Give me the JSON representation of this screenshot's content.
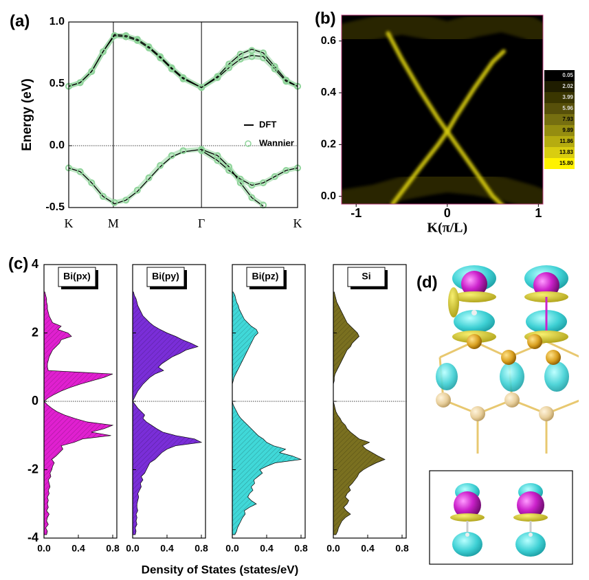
{
  "chart_data": [
    {
      "type": "line",
      "label": "(a)",
      "y_label": "Energy (eV)",
      "x": [
        0,
        0.05,
        0.1,
        0.15,
        0.2,
        0.25,
        0.3,
        0.35,
        0.4,
        0.45,
        0.5,
        0.58,
        0.65,
        0.7,
        0.75,
        0.8,
        0.85,
        0.9,
        0.95,
        1.0
      ],
      "xlim": [
        0,
        1
      ],
      "xticks": [
        {
          "value": 0,
          "label": "K"
        },
        {
          "value": 0.195,
          "label": "M"
        },
        {
          "value": 0.58,
          "label": "Γ"
        },
        {
          "value": 1,
          "label": "K"
        }
      ],
      "ylim": [
        -0.5,
        1.0
      ],
      "yticks": [
        -0.5,
        {
          "value": 0,
          "label": "0.0"
        },
        0.5,
        {
          "value": 1.0,
          "label": "1.0"
        }
      ],
      "hline": 0,
      "legend": "center right",
      "series": [
        {
          "name": "Wannier",
          "color": "#8fd49a",
          "marker": "circle",
          "values": [
            0.48,
            0.51,
            0.6,
            0.76,
            0.89,
            0.89,
            0.86,
            0.8,
            0.72,
            0.63,
            0.55,
            0.47,
            0.56,
            0.66,
            0.74,
            0.77,
            0.75,
            0.64,
            0.53,
            0.48
          ]
        },
        {
          "color": "#8fd49a",
          "marker": "circle",
          "values": [
            0.48,
            0.51,
            0.6,
            0.76,
            0.89,
            0.88,
            0.85,
            0.79,
            0.71,
            0.62,
            0.54,
            0.47,
            0.55,
            0.63,
            0.7,
            0.72,
            0.71,
            0.62,
            0.52,
            0.48
          ]
        },
        {
          "color": "#8fd49a",
          "marker": "circle",
          "values": [
            -0.18,
            -0.21,
            -0.3,
            -0.41,
            -0.46,
            -0.44,
            -0.36,
            -0.26,
            -0.16,
            -0.08,
            -0.04,
            -0.03,
            -0.08,
            -0.17,
            -0.3,
            -0.42,
            -0.48,
            null,
            null,
            null
          ]
        },
        {
          "color": "#8fd49a",
          "marker": "circle",
          "values": [
            null,
            null,
            null,
            null,
            null,
            null,
            null,
            null,
            null,
            null,
            null,
            -0.04,
            -0.12,
            -0.2,
            -0.27,
            -0.32,
            -0.3,
            -0.25,
            -0.2,
            -0.18
          ]
        },
        {
          "name": "DFT",
          "color": "#000000",
          "marker": "line",
          "values": [
            0.48,
            0.51,
            0.6,
            0.76,
            0.9,
            0.89,
            0.86,
            0.8,
            0.72,
            0.63,
            0.55,
            0.47,
            0.56,
            0.66,
            0.74,
            0.78,
            0.75,
            0.64,
            0.53,
            0.48
          ]
        },
        {
          "color": "#000000",
          "marker": "line",
          "values": [
            0.48,
            0.51,
            0.6,
            0.76,
            0.89,
            0.88,
            0.85,
            0.79,
            0.71,
            0.62,
            0.54,
            0.47,
            0.55,
            0.63,
            0.7,
            0.73,
            0.72,
            0.62,
            0.52,
            0.48
          ]
        },
        {
          "color": "#000000",
          "marker": "line",
          "values": [
            -0.18,
            -0.21,
            -0.3,
            -0.41,
            -0.47,
            -0.44,
            -0.37,
            -0.27,
            -0.17,
            -0.09,
            -0.05,
            -0.03,
            -0.08,
            -0.17,
            -0.3,
            -0.42,
            -0.49,
            null,
            null,
            null
          ]
        },
        {
          "color": "#000000",
          "marker": "line",
          "values": [
            null,
            null,
            null,
            null,
            null,
            null,
            null,
            null,
            null,
            null,
            null,
            -0.04,
            -0.12,
            -0.2,
            -0.27,
            -0.32,
            -0.3,
            -0.25,
            -0.2,
            -0.18
          ]
        }
      ]
    },
    {
      "type": "heatmap",
      "label": "(b)",
      "x_label": "K(π/L)",
      "xlim": [
        -1.16,
        1.05
      ],
      "xticks": [
        -1,
        0,
        1
      ],
      "ylim": [
        -0.03,
        0.7
      ],
      "yticks": [
        {
          "value": 0,
          "label": "0.0"
        },
        0.2,
        0.4,
        0.6
      ],
      "colorbar": {
        "levels": [
          0.05,
          2.02,
          3.99,
          5.96,
          7.93,
          9.89,
          11.86,
          13.83,
          {
            "value": 15.8,
            "label": "15.80"
          }
        ],
        "colors": [
          "#000000",
          "#1f1d00",
          "#3a3600",
          "#57500a",
          "#766f10",
          "#958d10",
          "#b6ac10",
          "#d9cd10",
          "#fff200"
        ]
      },
      "series": [
        {
          "x": [
            -1.16,
            -0.8,
            -0.5,
            -0.2,
            0,
            0.3,
            0.6,
            0.9,
            1.05
          ],
          "values": [
            0.62,
            0.65,
            0.67,
            0.65,
            0.63,
            0.66,
            0.68,
            0.65,
            0.62
          ],
          "intensity": 3.99
        },
        {
          "x": [
            -1.16,
            -0.8,
            -0.5,
            -0.2,
            0,
            0.3,
            0.6,
            0.9,
            1.05
          ],
          "values": [
            -0.02,
            0.0,
            0.03,
            0.05,
            0.06,
            0.05,
            0.03,
            0.0,
            -0.02
          ],
          "intensity": 3.99
        },
        {
          "x": [
            -0.65,
            -0.5,
            -0.3,
            -0.1,
            0,
            0.1,
            0.3,
            0.5,
            0.65
          ],
          "values": [
            0.63,
            0.53,
            0.41,
            0.3,
            0.25,
            0.2,
            0.1,
            0.0,
            -0.05
          ],
          "intensity": 13.83
        },
        {
          "x": [
            -0.6,
            -0.45,
            -0.3,
            -0.1,
            0,
            0.1,
            0.3,
            0.5,
            0.62
          ],
          "values": [
            -0.03,
            0.04,
            0.11,
            0.2,
            0.25,
            0.31,
            0.42,
            0.52,
            0.56
          ],
          "intensity": 13.83
        }
      ]
    },
    {
      "type": "area",
      "label": "(c)",
      "orientation": "horizontal",
      "y_label": "Density of States (states/eV)",
      "x": [
        -3.9,
        -3.8,
        -3.7,
        -3.6,
        -3.5,
        -3.4,
        -3.3,
        -3.2,
        -3.1,
        -3.0,
        -2.9,
        -2.8,
        -2.7,
        -2.6,
        -2.5,
        -2.4,
        -2.3,
        -2.2,
        -2.1,
        -2.0,
        -1.9,
        -1.8,
        -1.7,
        -1.6,
        -1.5,
        -1.4,
        -1.3,
        -1.2,
        -1.1,
        -1.0,
        -0.9,
        -0.8,
        -0.7,
        -0.6,
        -0.5,
        -0.4,
        -0.3,
        -0.2,
        -0.1,
        0,
        0.1,
        0.2,
        0.3,
        0.4,
        0.5,
        0.6,
        0.7,
        0.8,
        0.9,
        1.0,
        1.1,
        1.2,
        1.3,
        1.4,
        1.5,
        1.6,
        1.7,
        1.8,
        1.9,
        2.0,
        2.1,
        2.2,
        2.3,
        2.4,
        2.5,
        2.6,
        2.7,
        2.8,
        2.9,
        3.0,
        3.1,
        3.2
      ],
      "xlim": [
        -4,
        4
      ],
      "xticks": [
        -4,
        -2,
        0,
        2,
        4
      ],
      "ylim": [
        0,
        0.8
      ],
      "yticks": [
        {
          "value": 0,
          "label": "0.0"
        },
        0.4,
        0.8
      ],
      "hline": 0,
      "series": [
        {
          "name": "Bi(px)",
          "color": "#e020d0",
          "values": [
            0.03,
            0.04,
            0.02,
            0.05,
            0.03,
            0.04,
            0.06,
            0.03,
            0.05,
            0.04,
            0.05,
            0.04,
            0.06,
            0.05,
            0.07,
            0.06,
            0.05,
            0.08,
            0.07,
            0.09,
            0.1,
            0.12,
            0.09,
            0.14,
            0.18,
            0.22,
            0.2,
            0.35,
            0.45,
            0.78,
            0.55,
            0.7,
            0.8,
            0.5,
            0.36,
            0.24,
            0.15,
            0.09,
            0.04,
            0.0,
            0.05,
            0.12,
            0.2,
            0.3,
            0.42,
            0.56,
            0.7,
            0.8,
            0.05,
            0.04,
            0.04,
            0.05,
            0.06,
            0.08,
            0.1,
            0.14,
            0.18,
            0.2,
            0.32,
            0.28,
            0.16,
            0.2,
            0.1,
            0.08,
            0.06,
            0.05,
            0.04,
            0.04,
            0.03,
            0.03,
            0.02,
            0.01
          ]
        },
        {
          "name": "Bi(py)",
          "color": "#7a2ed8",
          "values": [
            0.03,
            0.04,
            0.03,
            0.05,
            0.04,
            0.05,
            0.04,
            0.06,
            0.05,
            0.05,
            0.06,
            0.07,
            0.06,
            0.08,
            0.1,
            0.09,
            0.12,
            0.1,
            0.14,
            0.16,
            0.18,
            0.2,
            0.26,
            0.3,
            0.34,
            0.4,
            0.5,
            0.8,
            0.72,
            0.5,
            0.35,
            0.28,
            0.22,
            0.16,
            0.12,
            0.14,
            0.1,
            0.06,
            0.03,
            0.0,
            0.02,
            0.04,
            0.06,
            0.09,
            0.12,
            0.16,
            0.2,
            0.26,
            0.36,
            0.3,
            0.34,
            0.4,
            0.46,
            0.55,
            0.62,
            0.76,
            0.68,
            0.58,
            0.5,
            0.4,
            0.32,
            0.25,
            0.2,
            0.16,
            0.12,
            0.1,
            0.08,
            0.06,
            0.05,
            0.04,
            0.02,
            0.01
          ]
        },
        {
          "name": "Bi(pz)",
          "color": "#40d8d8",
          "values": [
            0.03,
            0.05,
            0.06,
            0.08,
            0.1,
            0.12,
            0.15,
            0.14,
            0.2,
            0.28,
            0.22,
            0.18,
            0.2,
            0.24,
            0.22,
            0.26,
            0.25,
            0.3,
            0.35,
            0.32,
            0.4,
            0.5,
            0.8,
            0.7,
            0.55,
            0.62,
            0.48,
            0.4,
            0.36,
            0.3,
            0.26,
            0.22,
            0.18,
            0.14,
            0.1,
            0.07,
            0.05,
            0.03,
            0.01,
            0.0,
            0.0,
            0.0,
            0.0,
            0.0,
            0.0,
            0.01,
            0.02,
            0.04,
            0.06,
            0.08,
            0.1,
            0.12,
            0.14,
            0.16,
            0.18,
            0.2,
            0.22,
            0.24,
            0.26,
            0.3,
            0.28,
            0.22,
            0.18,
            0.14,
            0.12,
            0.1,
            0.08,
            0.07,
            0.05,
            0.04,
            0.03,
            0.01
          ]
        },
        {
          "name": "Si",
          "color": "#7a7020",
          "values": [
            0.03,
            0.05,
            0.06,
            0.08,
            0.1,
            0.14,
            0.2,
            0.15,
            0.12,
            0.16,
            0.18,
            0.14,
            0.16,
            0.2,
            0.18,
            0.22,
            0.25,
            0.28,
            0.3,
            0.35,
            0.42,
            0.5,
            0.6,
            0.52,
            0.45,
            0.38,
            0.34,
            0.42,
            0.3,
            0.25,
            0.2,
            0.16,
            0.14,
            0.1,
            0.08,
            0.05,
            0.03,
            0.02,
            0.01,
            0.0,
            0.0,
            0.0,
            0.0,
            0.0,
            0.0,
            0.01,
            0.01,
            0.02,
            0.04,
            0.06,
            0.08,
            0.1,
            0.12,
            0.14,
            0.16,
            0.2,
            0.22,
            0.26,
            0.3,
            0.28,
            0.24,
            0.2,
            0.16,
            0.14,
            0.12,
            0.1,
            0.08,
            0.06,
            0.04,
            0.03,
            0.02,
            0.01
          ]
        }
      ]
    }
  ],
  "panel_d": {
    "label": "(d)"
  }
}
